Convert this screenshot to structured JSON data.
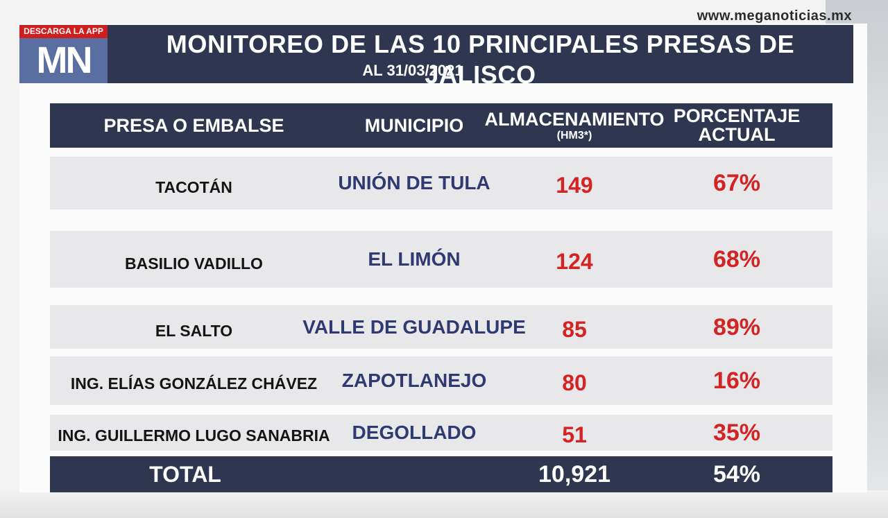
{
  "site": {
    "url": "www.meganoticias.mx"
  },
  "brand": {
    "app_tag": "DESCARGA LA APP",
    "logo": "MN"
  },
  "header": {
    "title": "MONITOREO DE LAS 10 PRINCIPALES PRESAS DE JALISCO",
    "subtitle": "AL 31/03/2021"
  },
  "table": {
    "columns": {
      "presa": "PRESA O EMBALSE",
      "municipio": "MUNICIPIO",
      "almacenamiento": "ALMACENAMIENTO",
      "almacenamiento_unit": "(HM3*)",
      "porcentaje_line1": "PORCENTAJE",
      "porcentaje_line2": "ACTUAL"
    },
    "rows": [
      {
        "presa": "TACOTÁN",
        "municipio": "UNIÓN DE TULA",
        "almacenamiento": "149",
        "porcentaje": "67%"
      },
      {
        "presa": "BASILIO VADILLO",
        "municipio": "EL LIMÓN",
        "almacenamiento": "124",
        "porcentaje": "68%"
      },
      {
        "presa": "EL SALTO",
        "municipio": "VALLE DE GUADALUPE",
        "almacenamiento": "85",
        "porcentaje": "89%"
      },
      {
        "presa": "ING. ELÍAS GONZÁLEZ CHÁVEZ",
        "municipio": "ZAPOTLANEJO",
        "almacenamiento": "80",
        "porcentaje": "16%"
      },
      {
        "presa": "ING. GUILLERMO LUGO SANABRIA",
        "municipio": "DEGOLLADO",
        "almacenamiento": "51",
        "porcentaje": "35%"
      }
    ],
    "total": {
      "label": "TOTAL",
      "almacenamiento": "10,921",
      "porcentaje": "54%"
    }
  },
  "colors": {
    "header_bg": "#2f3650",
    "logo_bg": "#5b6ea2",
    "app_tag_bg": "#cf1e1e",
    "row_bg": "#e8e8ea",
    "municipio_text": "#2f3a73",
    "value_text": "#d42323"
  }
}
